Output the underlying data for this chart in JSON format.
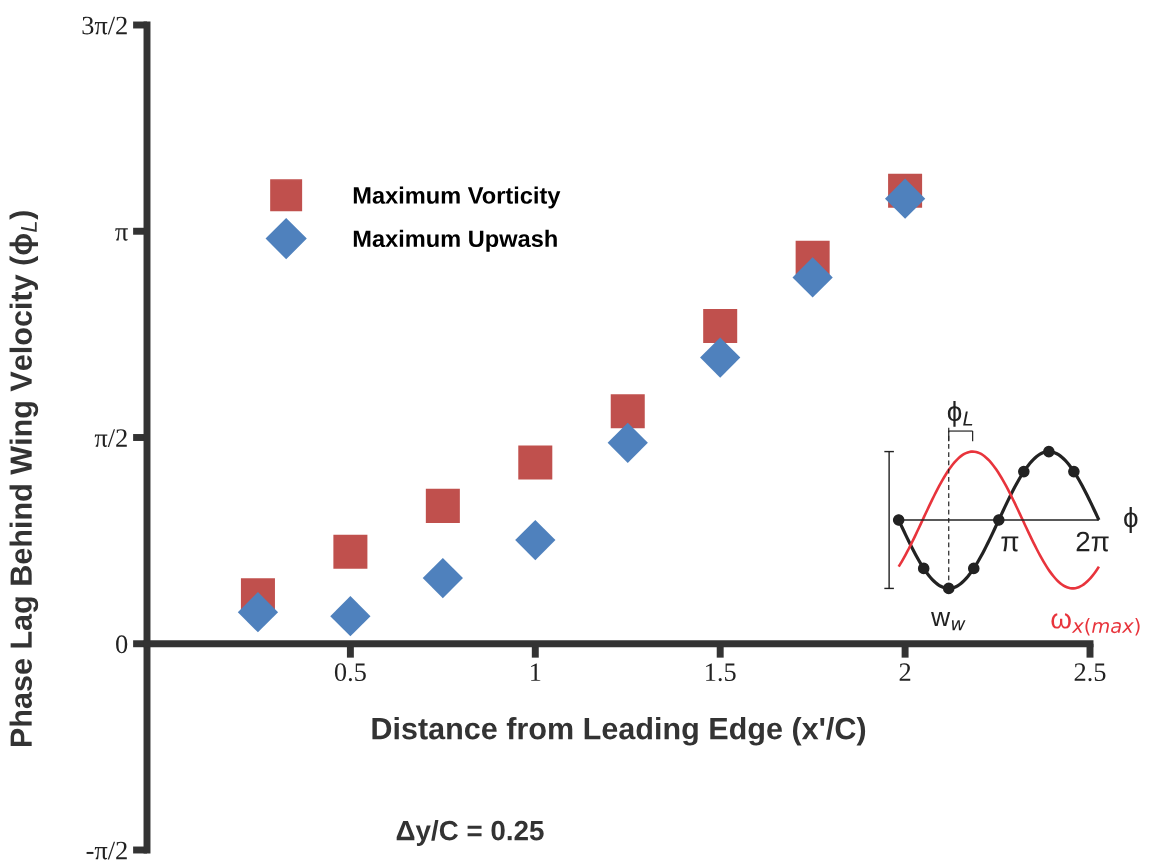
{
  "chart_data": {
    "type": "scatter",
    "xlabel": "Distance from Leading Edge (x'/C)",
    "ylabel": "Phase Lag Behind Wing Velocity (ϕ$_{L}$)",
    "x": [
      0.25,
      0.5,
      0.75,
      1.0,
      1.25,
      1.5,
      1.75,
      2.0
    ],
    "series": [
      {
        "name": "Maximum Vorticity",
        "color": "#c0504d",
        "marker": "square",
        "values": [
          0.37,
          0.7,
          1.05,
          1.38,
          1.77,
          2.42,
          2.94,
          3.45
        ]
      },
      {
        "name": "Maximum Upwash",
        "color": "#4f81bd",
        "marker": "diamond",
        "values": [
          0.24,
          0.21,
          0.5,
          0.79,
          1.53,
          2.18,
          2.79,
          3.39
        ]
      }
    ],
    "xlim": [
      -0.05,
      2.5
    ],
    "xticks": [
      0.5,
      1,
      1.5,
      2,
      2.5
    ],
    "ylim": [
      -1.5708,
      4.7124
    ],
    "yticks": [
      {
        "value": -1.5708,
        "label": "-π/2"
      },
      {
        "value": 0,
        "label": "0"
      },
      {
        "value": 1.5708,
        "label": "π/2"
      },
      {
        "value": 3.1416,
        "label": "π"
      },
      {
        "value": 4.7124,
        "label": "3π/2"
      }
    ],
    "legend": "top left",
    "grid": false,
    "annotations": [
      "Δy/C = 0.25",
      "ϕ$_{L}$",
      "π",
      "2π",
      "ϕ",
      "w$_{w}$",
      "ω$_{x(max)}$"
    ]
  }
}
